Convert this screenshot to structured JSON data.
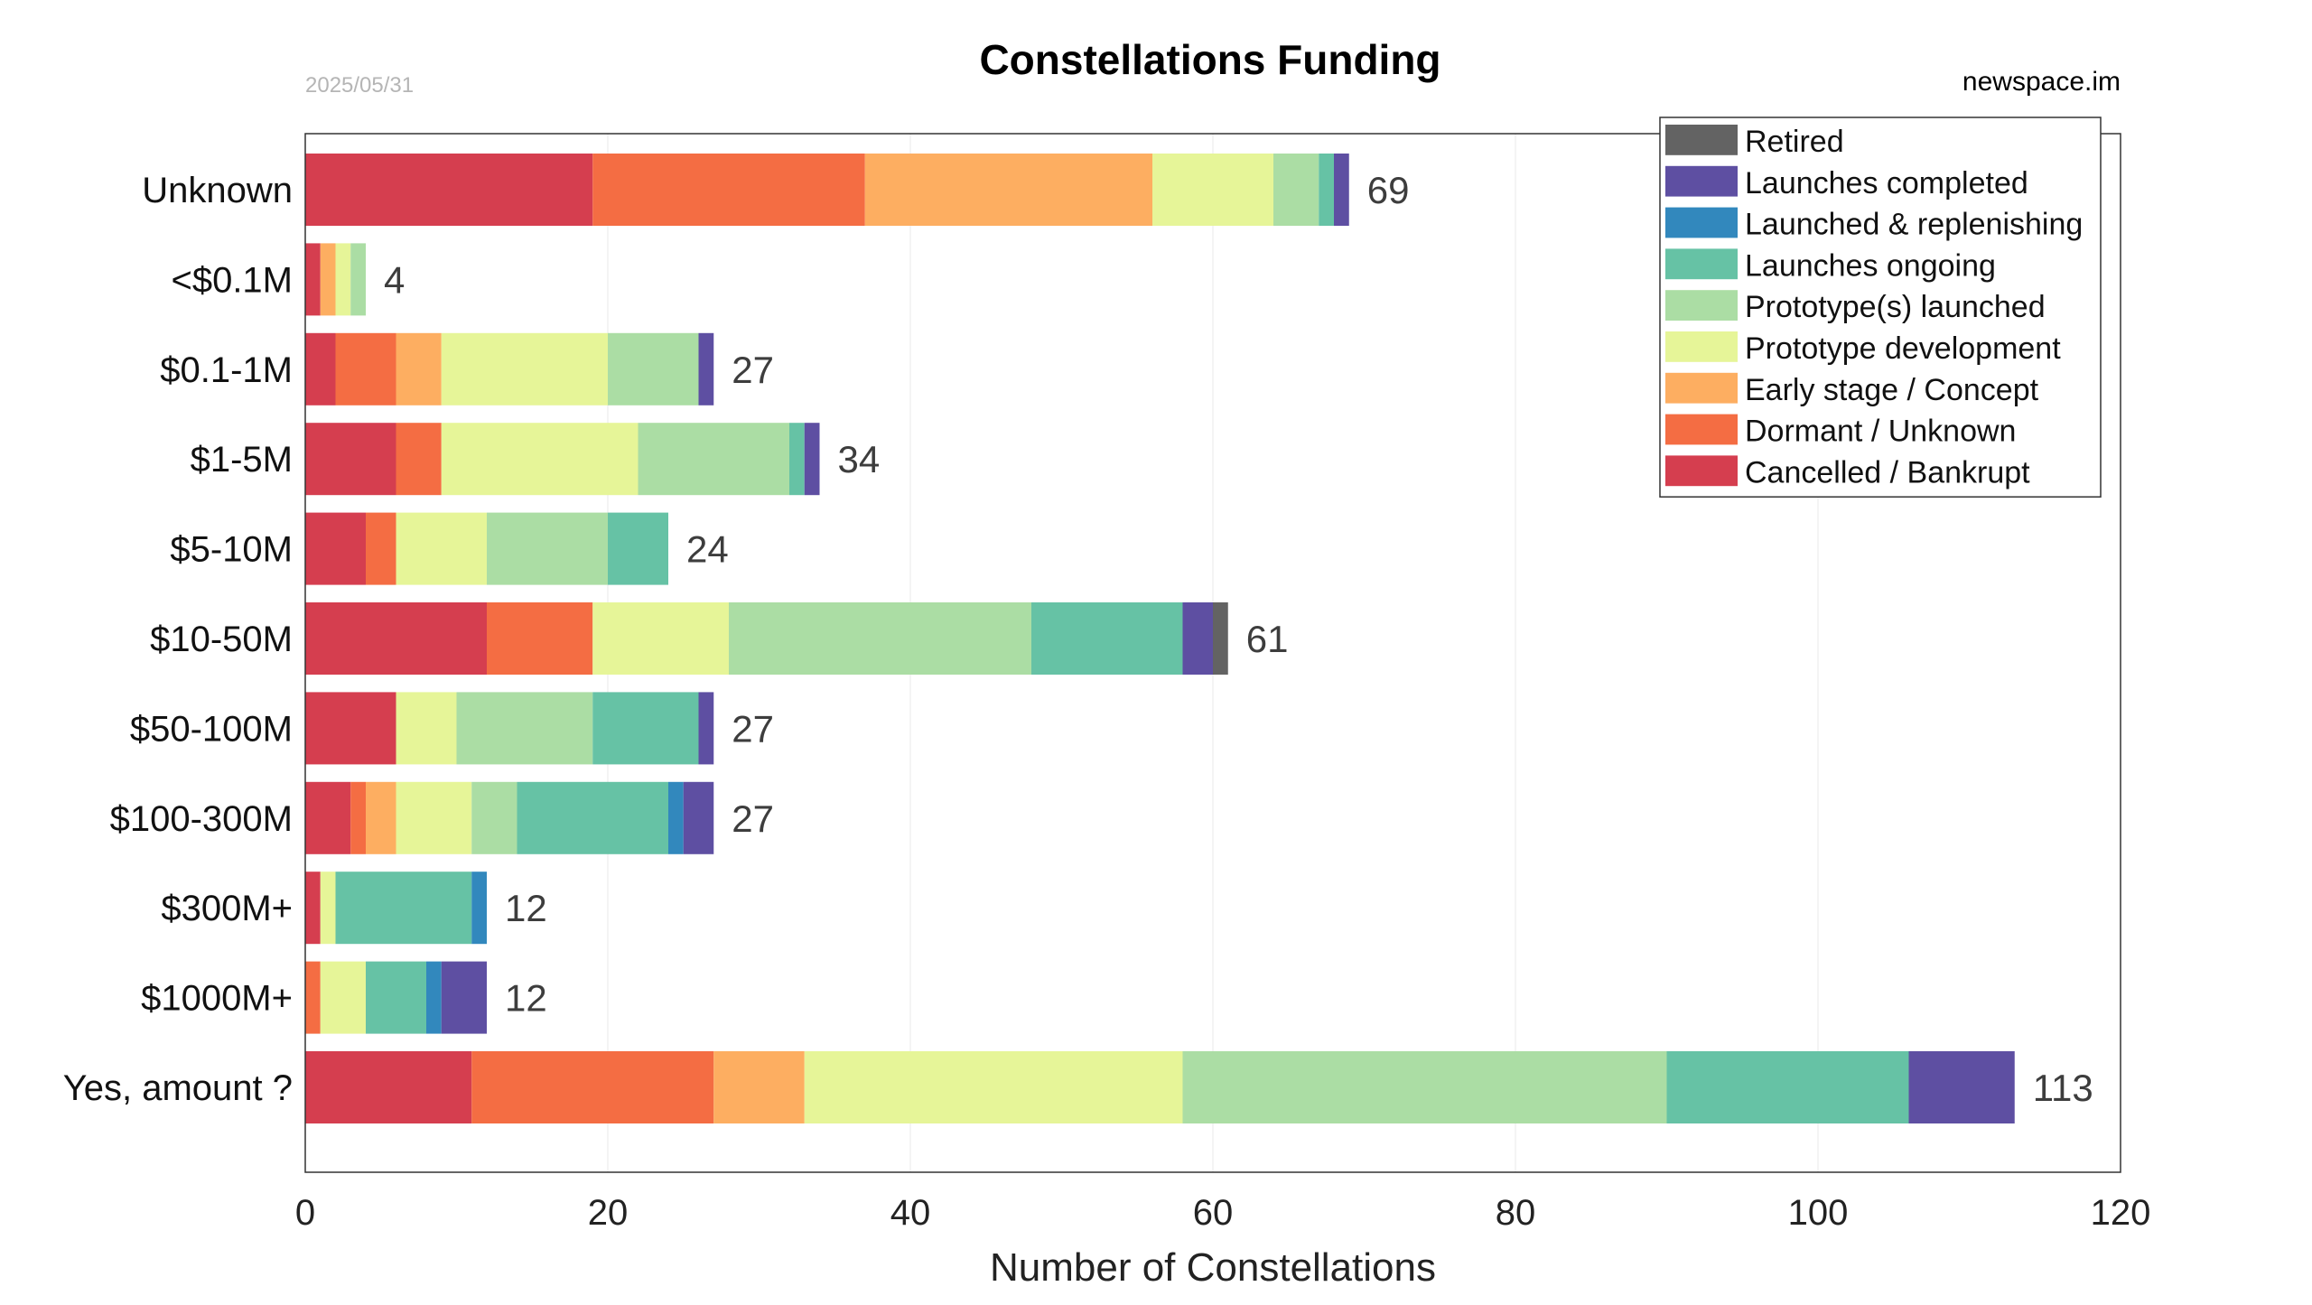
{
  "chart_data": {
    "type": "bar",
    "orientation": "horizontal",
    "stacked": true,
    "title": "Constellations Funding",
    "date": "2025/05/31",
    "source": "newspace.im",
    "xlabel": "Number of Constellations",
    "ylabel": "",
    "xlim": [
      0,
      120
    ],
    "xticks": [
      0,
      20,
      40,
      60,
      80,
      100,
      120
    ],
    "grid": "vertical",
    "legend_position": "top-right",
    "categories": [
      "Unknown",
      "<$0.1M",
      "$0.1-1M",
      "$1-5M",
      "$5-10M",
      "$10-50M",
      "$50-100M",
      "$100-300M",
      "$300M+",
      "$1000M+",
      "Yes, amount ?"
    ],
    "totals": [
      69,
      4,
      27,
      34,
      24,
      61,
      27,
      27,
      12,
      12,
      113
    ],
    "series": [
      {
        "name": "Cancelled / Bankrupt",
        "color": "#d53e4f",
        "values": [
          19,
          1,
          2,
          6,
          4,
          12,
          6,
          3,
          1,
          0,
          11
        ]
      },
      {
        "name": "Dormant / Unknown",
        "color": "#f46d43",
        "values": [
          18,
          0,
          4,
          3,
          2,
          7,
          0,
          1,
          0,
          1,
          16
        ]
      },
      {
        "name": "Early stage / Concept",
        "color": "#fdae61",
        "values": [
          19,
          1,
          3,
          0,
          0,
          0,
          0,
          2,
          0,
          0,
          6
        ]
      },
      {
        "name": "Prototype development",
        "color": "#e6f598",
        "values": [
          8,
          1,
          11,
          13,
          6,
          9,
          4,
          5,
          1,
          3,
          25
        ]
      },
      {
        "name": "Prototype(s) launched",
        "color": "#abdda4",
        "values": [
          3,
          1,
          6,
          10,
          8,
          20,
          9,
          3,
          0,
          0,
          32
        ]
      },
      {
        "name": "Launches ongoing",
        "color": "#66c2a5",
        "values": [
          1,
          0,
          0,
          1,
          4,
          10,
          7,
          10,
          9,
          4,
          16
        ]
      },
      {
        "name": "Launched & replenishing",
        "color": "#3288bd",
        "values": [
          0,
          0,
          0,
          0,
          0,
          0,
          0,
          1,
          1,
          1,
          0
        ]
      },
      {
        "name": "Launches completed",
        "color": "#5e4fa2",
        "values": [
          1,
          0,
          1,
          1,
          0,
          2,
          1,
          2,
          0,
          3,
          7
        ]
      },
      {
        "name": "Retired",
        "color": "#636363",
        "values": [
          0,
          0,
          0,
          0,
          0,
          1,
          0,
          0,
          0,
          0,
          0
        ]
      }
    ]
  }
}
